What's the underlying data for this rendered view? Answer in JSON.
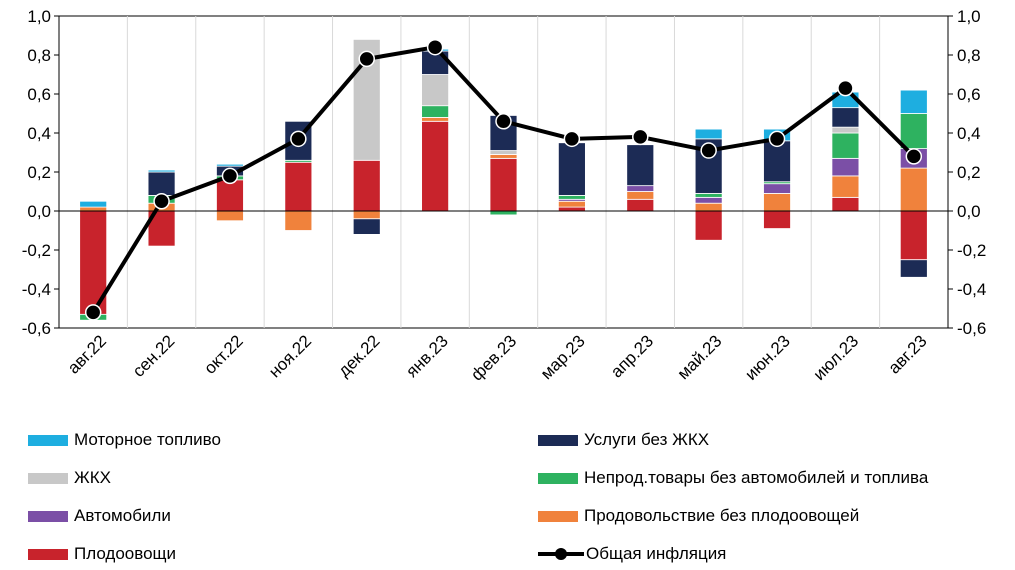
{
  "chart_data": {
    "type": "bar",
    "stacked": true,
    "categories": [
      "авг.22",
      "сен.22",
      "окт.22",
      "ноя.22",
      "дек.22",
      "янв.23",
      "фев.23",
      "мар.23",
      "апр.23",
      "май.23",
      "июн.23",
      "июл.23",
      "авг.23"
    ],
    "ylim": [
      -0.6,
      1.0
    ],
    "yticks": [
      "-0,6",
      "-0,4",
      "-0,2",
      "0,0",
      "0,2",
      "0,4",
      "0,6",
      "0,8",
      "1,0"
    ],
    "ytick_values": [
      -0.6,
      -0.4,
      -0.2,
      0.0,
      0.2,
      0.4,
      0.6,
      0.8,
      1.0
    ],
    "series": [
      {
        "key": "fruitveg",
        "name": "Плодоовощи",
        "color": "#C8232C",
        "values": [
          -0.53,
          -0.18,
          0.16,
          0.25,
          0.26,
          0.46,
          0.27,
          0.02,
          0.06,
          -0.15,
          -0.09,
          0.07,
          -0.25
        ]
      },
      {
        "key": "food",
        "name": "Продовольствие без плодоовощей",
        "color": "#F0823C",
        "values": [
          0.02,
          0.04,
          -0.05,
          -0.1,
          -0.04,
          0.02,
          0.02,
          0.03,
          0.04,
          0.04,
          0.09,
          0.11,
          0.22
        ]
      },
      {
        "key": "autos",
        "name": "Автомобили",
        "color": "#7B4FA6",
        "values": [
          0.0,
          0.0,
          0.0,
          0.0,
          0.0,
          0.0,
          0.0,
          0.01,
          0.03,
          0.03,
          0.05,
          0.09,
          0.1
        ]
      },
      {
        "key": "nonfood",
        "name": "Непрод.товары без автомобилей и топлива",
        "color": "#2EB260",
        "values": [
          -0.03,
          0.04,
          0.02,
          0.01,
          0.0,
          0.06,
          -0.02,
          0.02,
          0.0,
          0.02,
          0.01,
          0.13,
          0.18
        ]
      },
      {
        "key": "housing",
        "name": "ЖКХ",
        "color": "#C8C8C8",
        "values": [
          0.0,
          0.0,
          0.0,
          0.0,
          0.62,
          0.16,
          0.02,
          0.0,
          0.0,
          0.0,
          0.0,
          0.03,
          0.0
        ]
      },
      {
        "key": "services",
        "name": "Услуги без ЖКХ",
        "color": "#1C2B55",
        "values": [
          0.0,
          0.12,
          0.05,
          0.2,
          -0.08,
          0.12,
          0.18,
          0.27,
          0.21,
          0.28,
          0.21,
          0.1,
          -0.09
        ]
      },
      {
        "key": "fuel",
        "name": "Моторное топливо",
        "color": "#1EAEE0",
        "values": [
          0.03,
          0.01,
          0.01,
          0.0,
          0.0,
          0.01,
          0.0,
          0.0,
          0.0,
          0.05,
          0.06,
          0.08,
          0.12
        ]
      }
    ],
    "line": {
      "name": "Общая инфляция",
      "color": "#000000",
      "values": [
        -0.52,
        0.05,
        0.18,
        0.37,
        0.78,
        0.84,
        0.46,
        0.37,
        0.38,
        0.31,
        0.37,
        0.63,
        0.28
      ]
    }
  },
  "legend": {
    "left": [
      {
        "key": "fuel",
        "label": "Моторное топливо",
        "color": "#1EAEE0"
      },
      {
        "key": "housing",
        "label": "ЖКХ",
        "color": "#C8C8C8"
      },
      {
        "key": "autos",
        "label": "Автомобили",
        "color": "#7B4FA6"
      },
      {
        "key": "fruitveg",
        "label": "Плодоовощи",
        "color": "#C8232C"
      }
    ],
    "right": [
      {
        "key": "services",
        "label": "Услуги без ЖКХ",
        "color": "#1C2B55"
      },
      {
        "key": "nonfood",
        "label": "Непрод.товары без автомобилей и топлива",
        "color": "#2EB260"
      },
      {
        "key": "food",
        "label": "Продовольствие без плодоовощей",
        "color": "#F0823C"
      },
      {
        "key": "line",
        "label": "Общая инфляция",
        "color": "#000000"
      }
    ]
  }
}
